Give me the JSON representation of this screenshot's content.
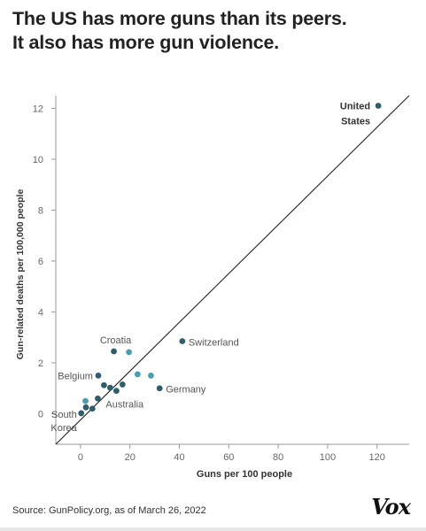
{
  "header": {
    "title_line1": "The US has more guns than its peers.",
    "title_line2": "It also has more gun violence."
  },
  "footer": {
    "source": "Source: GunPolicy.org, as of March 26, 2022",
    "logo": "Vox"
  },
  "colors": {
    "point_dark": "#2f5d6b",
    "point_light": "#4a9db0",
    "trend_line": "#222222",
    "axis": "#999999",
    "tick_text": "#666666"
  },
  "chart_data": {
    "type": "scatter",
    "title": "The US has more guns than its peers. It also has more gun violence.",
    "xlabel": "Guns per 100 people",
    "ylabel": "Gun-related deaths per 100,000 people",
    "xlim": [
      -10,
      133
    ],
    "ylim": [
      -1.2,
      12.5
    ],
    "xticks": [
      0,
      20,
      40,
      60,
      80,
      100,
      120
    ],
    "yticks": [
      0,
      2,
      4,
      6,
      8,
      10,
      12
    ],
    "grid": false,
    "trend_line": {
      "x": [
        -10,
        133
      ],
      "y": [
        -1.2,
        12.5
      ]
    },
    "points": [
      {
        "x": 120.5,
        "y": 12.1,
        "tone": "dark"
      },
      {
        "x": 41.2,
        "y": 2.85,
        "tone": "dark"
      },
      {
        "x": 13.5,
        "y": 2.45,
        "tone": "dark"
      },
      {
        "x": 19.6,
        "y": 2.42,
        "tone": "light"
      },
      {
        "x": 7.2,
        "y": 1.5,
        "tone": "dark"
      },
      {
        "x": 23.1,
        "y": 1.55,
        "tone": "light"
      },
      {
        "x": 28.5,
        "y": 1.5,
        "tone": "light"
      },
      {
        "x": 32.0,
        "y": 1.0,
        "tone": "dark"
      },
      {
        "x": 17.0,
        "y": 1.15,
        "tone": "dark"
      },
      {
        "x": 9.5,
        "y": 1.12,
        "tone": "dark"
      },
      {
        "x": 12.0,
        "y": 1.02,
        "tone": "dark"
      },
      {
        "x": 14.5,
        "y": 0.9,
        "tone": "dark"
      },
      {
        "x": 7.0,
        "y": 0.6,
        "tone": "dark"
      },
      {
        "x": 2.0,
        "y": 0.5,
        "tone": "light"
      },
      {
        "x": 2.2,
        "y": 0.25,
        "tone": "dark"
      },
      {
        "x": 4.8,
        "y": 0.2,
        "tone": "dark"
      },
      {
        "x": 0.3,
        "y": 0.02,
        "tone": "dark"
      }
    ],
    "annotations": [
      {
        "text": "United",
        "x": 120.5,
        "y": 12.1,
        "bold": true
      },
      {
        "text": "States",
        "x": 120.5,
        "y": 12.1,
        "bold": true
      },
      {
        "text": "Switzerland",
        "x": 41.2,
        "y": 2.85
      },
      {
        "text": "Croatia",
        "x": 13.5,
        "y": 2.45
      },
      {
        "text": "Belgium",
        "x": 7.2,
        "y": 1.5
      },
      {
        "text": "Germany",
        "x": 32.0,
        "y": 1.0
      },
      {
        "text": "Australia",
        "x": 14.5,
        "y": 0.9
      },
      {
        "text": "South",
        "x": 0.3,
        "y": 0.02
      },
      {
        "text": "Korea",
        "x": 0.3,
        "y": 0.02
      }
    ]
  }
}
